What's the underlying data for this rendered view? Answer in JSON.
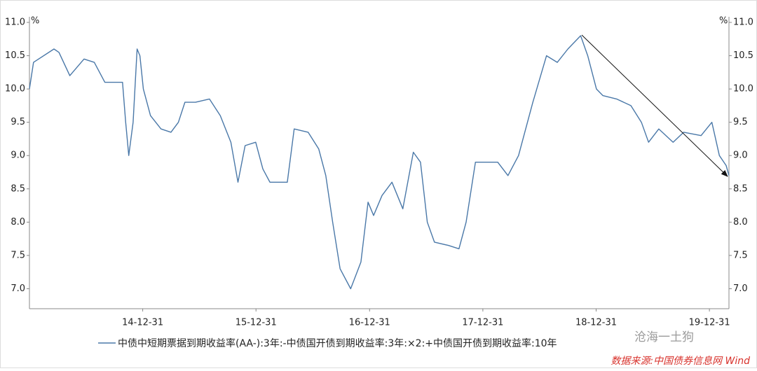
{
  "chart_data": {
    "type": "line",
    "ylabel": "%",
    "y2label": "%",
    "x": [
      "2013-12-31",
      "2014-01-13",
      "2014-03-20",
      "2014-04-05",
      "2014-05-10",
      "2014-06-25",
      "2014-07-28",
      "2014-08-31",
      "2014-10-03",
      "2014-10-27",
      "2014-11-06",
      "2014-11-16",
      "2014-11-30",
      "2014-12-13",
      "2014-12-22",
      "2015-01-02",
      "2015-01-25",
      "2015-02-28",
      "2015-04-01",
      "2015-04-25",
      "2015-05-16",
      "2015-06-19",
      "2015-08-03",
      "2015-09-07",
      "2015-10-11",
      "2015-11-03",
      "2015-11-26",
      "2015-12-30",
      "2016-01-22",
      "2016-02-14",
      "2016-03-18",
      "2016-04-10",
      "2016-05-02",
      "2016-06-16",
      "2016-07-20",
      "2016-08-12",
      "2016-09-03",
      "2016-09-27",
      "2016-10-31",
      "2016-12-03",
      "2016-12-26",
      "2017-01-13",
      "2017-02-09",
      "2017-03-13",
      "2017-04-17",
      "2017-05-21",
      "2017-06-13",
      "2017-07-05",
      "2017-07-28",
      "2017-09-11",
      "2017-10-15",
      "2017-11-07",
      "2017-12-07",
      "2018-01-02",
      "2018-02-17",
      "2018-03-22",
      "2018-04-25",
      "2018-06-10",
      "2018-07-24",
      "2018-08-28",
      "2018-10-01",
      "2018-11-11",
      "2018-12-04",
      "2019-01-01",
      "2019-01-22",
      "2019-03-07",
      "2019-04-22",
      "2019-05-26",
      "2019-06-18",
      "2019-07-21",
      "2019-09-05",
      "2019-10-09",
      "2019-12-04",
      "2020-01-08",
      "2020-02-01",
      "2020-02-23",
      "2020-03-03"
    ],
    "series": [
      {
        "name": "中债中短期票据到期收益率(AA-):3年:-中债国开债到期收益率:3年:×2:+中债国开债到期收益率:10年",
        "color": "#4a78a8",
        "values": [
          10.0,
          10.4,
          10.6,
          10.55,
          10.2,
          10.45,
          10.4,
          10.1,
          10.1,
          10.1,
          9.5,
          9.0,
          9.5,
          10.6,
          10.5,
          10.0,
          9.6,
          9.4,
          9.35,
          9.5,
          9.8,
          9.8,
          9.85,
          9.6,
          9.2,
          8.6,
          9.15,
          9.2,
          8.8,
          8.6,
          8.6,
          8.6,
          9.4,
          9.35,
          9.1,
          8.7,
          8.0,
          7.3,
          7.0,
          7.4,
          8.3,
          8.1,
          8.4,
          8.6,
          8.2,
          9.05,
          8.9,
          8.0,
          7.7,
          7.65,
          7.6,
          8.0,
          8.9,
          8.9,
          8.9,
          8.7,
          9.0,
          9.8,
          10.5,
          10.4,
          10.6,
          10.8,
          10.5,
          10.0,
          9.9,
          9.85,
          9.75,
          9.5,
          9.2,
          9.4,
          9.2,
          9.35,
          9.3,
          9.5,
          9.0,
          8.85,
          8.7
        ]
      }
    ],
    "xlim": [
      "2013-12-31",
      "2020-03-03"
    ],
    "xticks": [
      {
        "value": "2014-12-31",
        "label": "14-12-31"
      },
      {
        "value": "2015-12-31",
        "label": "15-12-31"
      },
      {
        "value": "2016-12-31",
        "label": "16-12-31"
      },
      {
        "value": "2017-12-31",
        "label": "17-12-31"
      },
      {
        "value": "2018-12-31",
        "label": "18-12-31"
      },
      {
        "value": "2019-12-31",
        "label": "19-12-31"
      }
    ],
    "ylim": [
      6.7,
      11.0
    ],
    "yticks": [
      {
        "value": 7,
        "label": "7.0"
      },
      7.5,
      {
        "value": 8,
        "label": "8.0"
      },
      8.5,
      {
        "value": 9,
        "label": "9.0"
      },
      9.5,
      {
        "value": 10,
        "label": "10.0"
      },
      10.5,
      {
        "value": 11,
        "label": "11.0"
      }
    ],
    "y2lim": [
      6.7,
      11.0
    ],
    "y2ticks": [
      {
        "value": 7,
        "label": "7.0"
      },
      7.5,
      {
        "value": 8,
        "label": "8.0"
      },
      8.5,
      {
        "value": 9,
        "label": "9.0"
      },
      9.5,
      {
        "value": 10,
        "label": "10.0"
      },
      10.5,
      {
        "value": 11,
        "label": "11.0"
      }
    ],
    "watermark": "沧海一土狗",
    "source": "数据来源:中国债券信息网 Wind"
  }
}
